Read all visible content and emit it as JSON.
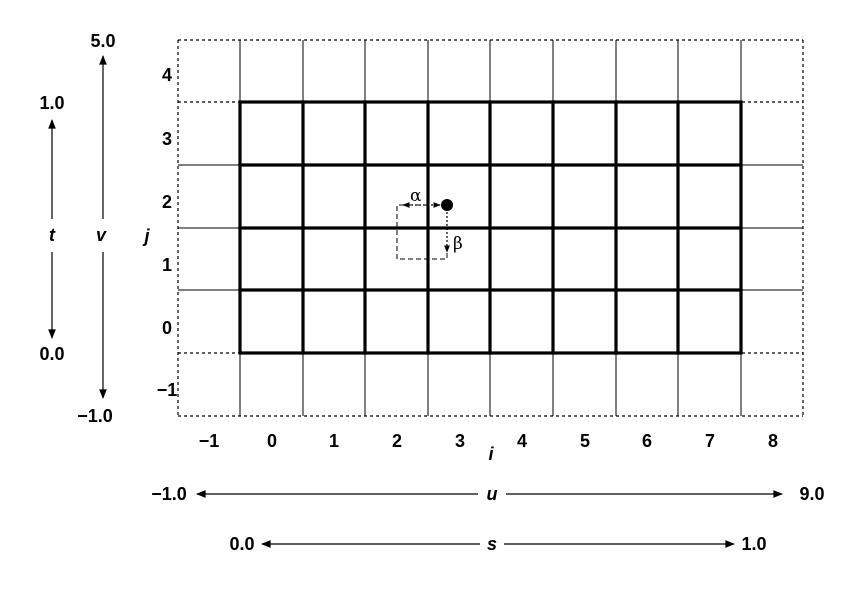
{
  "i_ticks": [
    "−1",
    "0",
    "1",
    "2",
    "3",
    "4",
    "5",
    "6",
    "7",
    "8"
  ],
  "j_ticks": [
    "−1",
    "0",
    "1",
    "2",
    "3",
    "4"
  ],
  "i_label": "i",
  "j_label": "j",
  "t_axis": {
    "label": "t",
    "top": "1.0",
    "bottom": "0.0"
  },
  "v_axis": {
    "label": "v",
    "top": "5.0",
    "bottom": "−1.0"
  },
  "u_axis": {
    "label": "u",
    "left": "−1.0",
    "right": "9.0"
  },
  "s_axis": {
    "label": "s",
    "left": "0.0",
    "right": "1.0"
  },
  "alpha": "α",
  "beta": "β"
}
